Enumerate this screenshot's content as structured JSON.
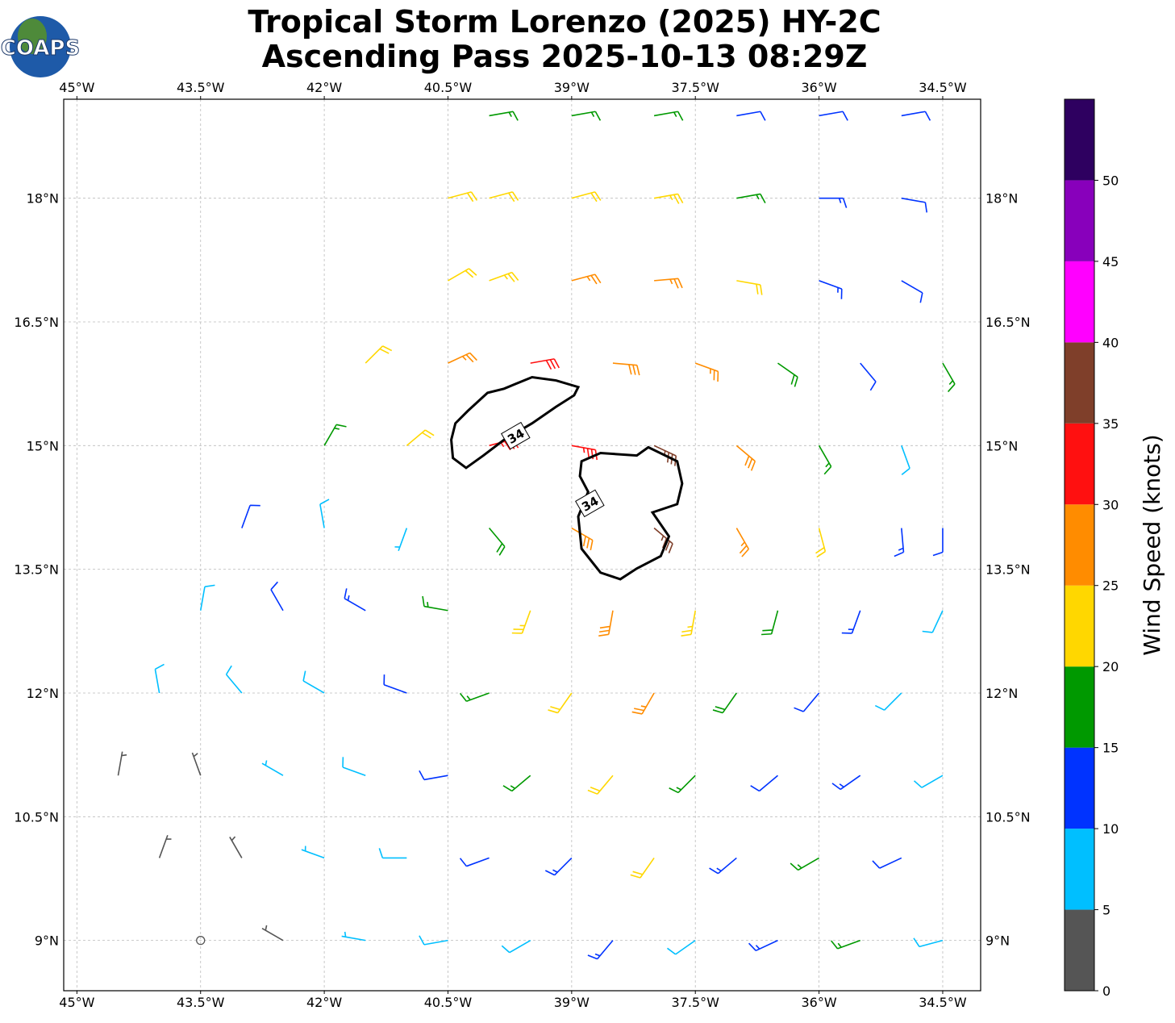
{
  "map": {
    "title": [
      "Tropical Storm Lorenzo (2025) HY-2C",
      "Ascending Pass 2025-10-13 08:29Z"
    ],
    "logo": "COAPS",
    "xlim": [
      -45.16,
      -34.04
    ],
    "ylim": [
      8.39,
      19.2
    ],
    "xticks": [
      {
        "value": -45,
        "label": "45°W"
      },
      {
        "value": -43.5,
        "label": "43.5°W"
      },
      {
        "value": -42,
        "label": "42°W"
      },
      {
        "value": -40.5,
        "label": "40.5°W"
      },
      {
        "value": -39,
        "label": "39°W"
      },
      {
        "value": -37.5,
        "label": "37.5°W"
      },
      {
        "value": -36,
        "label": "36°W"
      },
      {
        "value": -34.5,
        "label": "34.5°W"
      }
    ],
    "yticks": [
      {
        "value": 18,
        "label": "18°N"
      },
      {
        "value": 16.5,
        "label": "16.5°N"
      },
      {
        "value": 15,
        "label": "15°N"
      },
      {
        "value": 13.5,
        "label": "13.5°N"
      },
      {
        "value": 12,
        "label": "12°N"
      },
      {
        "value": 10.5,
        "label": "10.5°N"
      },
      {
        "value": 9,
        "label": "9°N"
      }
    ],
    "grid": true,
    "colorbar": {
      "label": "Wind Speed (knots)",
      "lim": [
        0,
        55
      ],
      "bounds": [
        0,
        5,
        10,
        15,
        20,
        25,
        30,
        35,
        40,
        45,
        50,
        55
      ],
      "colors": [
        "#555555",
        "#00bfff",
        "#0033ff",
        "#009900",
        "#ffd700",
        "#ff8c00",
        "#ff1010",
        "#7f3f2a",
        "#ff00ff",
        "#8800bb",
        "#2e0060"
      ],
      "ticks": [
        0,
        5,
        10,
        15,
        20,
        25,
        30,
        35,
        40,
        45,
        50
      ]
    },
    "barbs": [
      [
        -40,
        19,
        17,
        80
      ],
      [
        -39,
        19,
        17,
        80
      ],
      [
        -38,
        19,
        15,
        80
      ],
      [
        -37,
        19,
        12,
        80
      ],
      [
        -36,
        19,
        12,
        80
      ],
      [
        -35,
        19,
        12,
        80
      ],
      [
        -40.5,
        18,
        22,
        75
      ],
      [
        -40,
        18,
        22,
        75
      ],
      [
        -39,
        18,
        22,
        75
      ],
      [
        -38,
        18,
        24,
        80
      ],
      [
        -37,
        18,
        17,
        80
      ],
      [
        -36,
        18,
        13,
        90
      ],
      [
        -35,
        18,
        12,
        100
      ],
      [
        -40.5,
        17,
        21,
        60
      ],
      [
        -40,
        17,
        23,
        70
      ],
      [
        -39,
        17,
        26,
        75
      ],
      [
        -38,
        17,
        27,
        85
      ],
      [
        -37,
        17,
        22,
        100
      ],
      [
        -36,
        17,
        14,
        110
      ],
      [
        -35,
        17,
        12,
        120
      ],
      [
        -41.5,
        16,
        21,
        45
      ],
      [
        -40.5,
        16,
        27,
        65
      ],
      [
        -39.5,
        16,
        31,
        80
      ],
      [
        -38.5,
        16,
        29,
        95
      ],
      [
        -37.5,
        16,
        27,
        110
      ],
      [
        -36.5,
        16,
        18,
        125
      ],
      [
        -35.5,
        16,
        12,
        140
      ],
      [
        -34.5,
        16,
        16,
        150
      ],
      [
        -42,
        15,
        17,
        30
      ],
      [
        -41,
        15,
        22,
        50
      ],
      [
        -40,
        15,
        34,
        75
      ],
      [
        -39,
        15,
        33,
        100
      ],
      [
        -38,
        15,
        36,
        115
      ],
      [
        -37,
        15,
        28,
        130
      ],
      [
        -36,
        15,
        17,
        150
      ],
      [
        -35,
        15,
        9,
        160
      ],
      [
        -43,
        14,
        12,
        20
      ],
      [
        -42,
        14,
        8,
        350
      ],
      [
        -41,
        14,
        7,
        200
      ],
      [
        -40,
        14,
        18,
        140
      ],
      [
        -39,
        14,
        28,
        120
      ],
      [
        -38,
        14,
        37,
        130
      ],
      [
        -37,
        14,
        27,
        150
      ],
      [
        -36,
        14,
        22,
        165
      ],
      [
        -35,
        14,
        13,
        175
      ],
      [
        -34.5,
        14,
        12,
        180
      ],
      [
        -43.5,
        13,
        9,
        10
      ],
      [
        -42.5,
        13,
        11,
        330
      ],
      [
        -41.5,
        13,
        13,
        300
      ],
      [
        -40.5,
        13,
        17,
        280
      ],
      [
        -39.5,
        13,
        23,
        200
      ],
      [
        -38.5,
        13,
        29,
        190
      ],
      [
        -37.5,
        13,
        23,
        190
      ],
      [
        -36.5,
        13,
        18,
        195
      ],
      [
        -35.5,
        13,
        13,
        200
      ],
      [
        -34.5,
        13,
        9,
        205
      ],
      [
        -44,
        12,
        8,
        350
      ],
      [
        -43,
        12,
        8,
        320
      ],
      [
        -42,
        12,
        9,
        300
      ],
      [
        -41,
        12,
        12,
        290
      ],
      [
        -40,
        12,
        16,
        250
      ],
      [
        -39,
        12,
        21,
        215
      ],
      [
        -38,
        12,
        27,
        210
      ],
      [
        -37,
        12,
        18,
        215
      ],
      [
        -36,
        12,
        12,
        220
      ],
      [
        -35,
        12,
        9,
        225
      ],
      [
        -44.5,
        11,
        4,
        10
      ],
      [
        -43.5,
        11,
        4,
        340
      ],
      [
        -42.5,
        11,
        7,
        300
      ],
      [
        -41.5,
        11,
        8,
        290
      ],
      [
        -40.5,
        11,
        12,
        260
      ],
      [
        -39.5,
        11,
        17,
        230
      ],
      [
        -38.5,
        11,
        22,
        220
      ],
      [
        -37.5,
        11,
        16,
        225
      ],
      [
        -36.5,
        11,
        12,
        230
      ],
      [
        -35.5,
        11,
        13,
        235
      ],
      [
        -34.5,
        11,
        9,
        240
      ],
      [
        -44,
        10,
        3,
        20
      ],
      [
        -43,
        10,
        3,
        330
      ],
      [
        -42,
        10,
        7,
        290
      ],
      [
        -41,
        10,
        8,
        270
      ],
      [
        -40,
        10,
        11,
        250
      ],
      [
        -39,
        10,
        13,
        225
      ],
      [
        -38,
        10,
        21,
        215
      ],
      [
        -37,
        10,
        13,
        230
      ],
      [
        -36,
        10,
        16,
        240
      ],
      [
        -35,
        10,
        12,
        245
      ],
      [
        -43.5,
        9,
        2,
        0
      ],
      [
        -42.5,
        9,
        3,
        300
      ],
      [
        -41.5,
        9,
        6,
        280
      ],
      [
        -40.5,
        9,
        8,
        260
      ],
      [
        -39.5,
        9,
        9,
        240
      ],
      [
        -38.5,
        9,
        13,
        220
      ],
      [
        -37.5,
        9,
        9,
        235
      ],
      [
        -36.5,
        9,
        13,
        245
      ],
      [
        -35.5,
        9,
        17,
        250
      ],
      [
        -34.5,
        9,
        9,
        255
      ]
    ],
    "contours": [
      {
        "level": 34,
        "label_at": [
          -39.68,
          15.12
        ],
        "path": [
          [
            -40.46,
            15.07
          ],
          [
            -40.41,
            15.27
          ],
          [
            -40.26,
            15.42
          ],
          [
            -40.02,
            15.64
          ],
          [
            -39.82,
            15.69
          ],
          [
            -39.48,
            15.83
          ],
          [
            -39.19,
            15.79
          ],
          [
            -38.92,
            15.71
          ],
          [
            -38.97,
            15.61
          ],
          [
            -39.19,
            15.47
          ],
          [
            -39.48,
            15.27
          ],
          [
            -39.82,
            15.07
          ],
          [
            -40.07,
            14.88
          ],
          [
            -40.28,
            14.73
          ],
          [
            -40.44,
            14.85
          ]
        ]
      },
      {
        "level": 34,
        "label_at": [
          -38.78,
          14.3
        ],
        "path": [
          [
            -38.88,
            14.81
          ],
          [
            -38.65,
            14.91
          ],
          [
            -38.21,
            14.88
          ],
          [
            -38.07,
            14.98
          ],
          [
            -37.72,
            14.81
          ],
          [
            -37.66,
            14.54
          ],
          [
            -37.72,
            14.29
          ],
          [
            -38.02,
            14.19
          ],
          [
            -37.82,
            13.9
          ],
          [
            -37.92,
            13.66
          ],
          [
            -38.21,
            13.51
          ],
          [
            -38.41,
            13.38
          ],
          [
            -38.65,
            13.46
          ],
          [
            -38.88,
            13.75
          ],
          [
            -38.92,
            14.14
          ],
          [
            -38.8,
            14.44
          ],
          [
            -38.9,
            14.63
          ]
        ]
      }
    ]
  }
}
